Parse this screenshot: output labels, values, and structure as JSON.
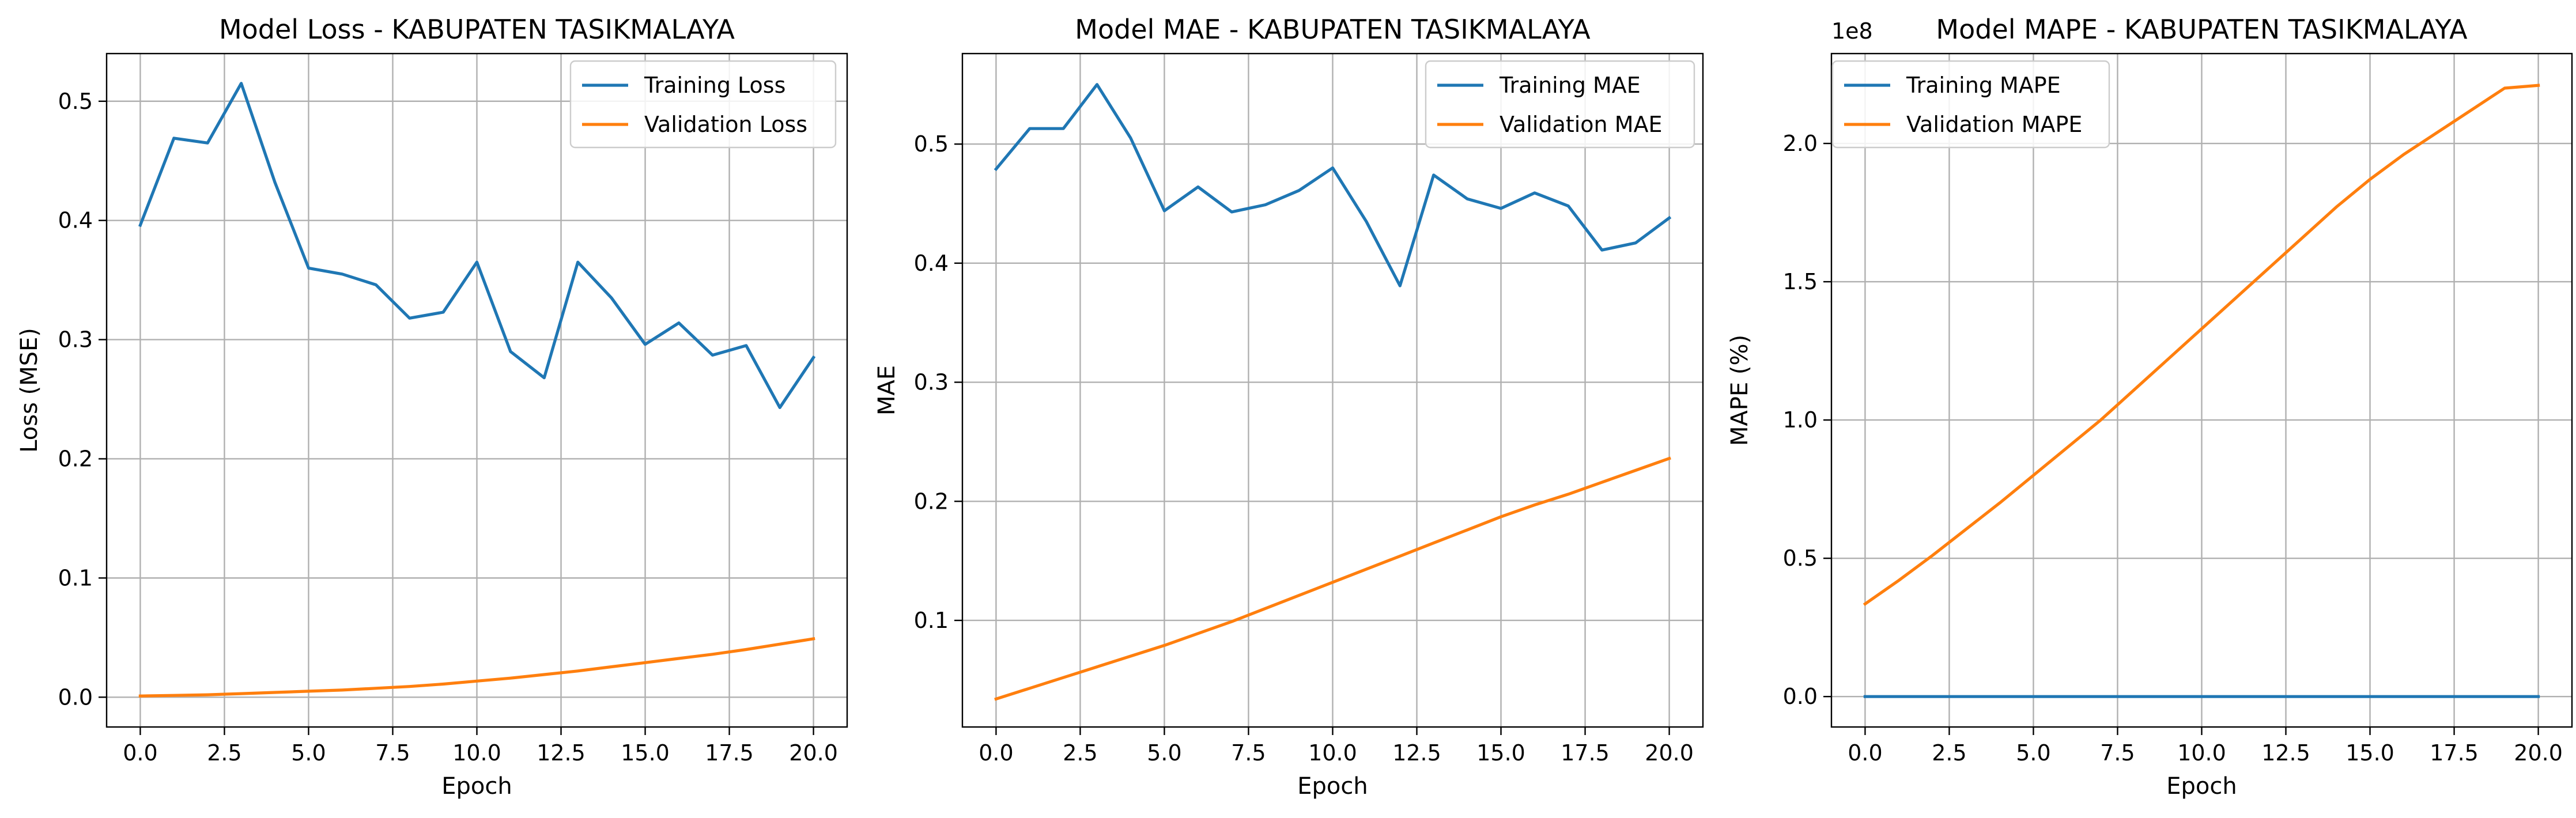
{
  "chart_data": [
    {
      "type": "line",
      "title": "Model Loss - KABUPATEN TASIKMALAYA",
      "xlabel": "Epoch",
      "ylabel": "Loss (MSE)",
      "xlim": [
        -1,
        21
      ],
      "ylim": [
        -0.025,
        0.54
      ],
      "xticks": [
        0,
        2.5,
        5,
        7.5,
        10,
        12.5,
        15,
        17.5,
        20
      ],
      "xtick_labels": [
        "0.0",
        "2.5",
        "5.0",
        "7.5",
        "10.0",
        "12.5",
        "15.0",
        "17.5",
        "20.0"
      ],
      "yticks": [
        0,
        0.1,
        0.2,
        0.3,
        0.4,
        0.5
      ],
      "ytick_labels": [
        "0.0",
        "0.1",
        "0.2",
        "0.3",
        "0.4",
        "0.5"
      ],
      "y_offset_label": "",
      "grid": true,
      "legend_position": "top-right",
      "x": [
        0,
        1,
        2,
        3,
        4,
        5,
        6,
        7,
        8,
        9,
        10,
        11,
        12,
        13,
        14,
        15,
        16,
        17,
        18,
        19,
        20
      ],
      "series": [
        {
          "name": "Training Loss",
          "color": "#1f77b4",
          "values": [
            0.396,
            0.469,
            0.465,
            0.515,
            0.432,
            0.36,
            0.355,
            0.346,
            0.318,
            0.323,
            0.365,
            0.29,
            0.268,
            0.365,
            0.335,
            0.296,
            0.314,
            0.287,
            0.295,
            0.243,
            0.285
          ]
        },
        {
          "name": "Validation Loss",
          "color": "#ff7f0e",
          "values": [
            0.001,
            0.0015,
            0.002,
            0.003,
            0.004,
            0.005,
            0.006,
            0.0075,
            0.009,
            0.011,
            0.0135,
            0.016,
            0.019,
            0.022,
            0.0255,
            0.029,
            0.0325,
            0.036,
            0.04,
            0.0445,
            0.049
          ]
        }
      ]
    },
    {
      "type": "line",
      "title": "Model MAE - KABUPATEN TASIKMALAYA",
      "xlabel": "Epoch",
      "ylabel": "MAE",
      "xlim": [
        -1,
        21
      ],
      "ylim": [
        0.0105,
        0.576
      ],
      "xticks": [
        0,
        2.5,
        5,
        7.5,
        10,
        12.5,
        15,
        17.5,
        20
      ],
      "xtick_labels": [
        "0.0",
        "2.5",
        "5.0",
        "7.5",
        "10.0",
        "12.5",
        "15.0",
        "17.5",
        "20.0"
      ],
      "yticks": [
        0.1,
        0.2,
        0.3,
        0.4,
        0.5
      ],
      "ytick_labels": [
        "0.1",
        "0.2",
        "0.3",
        "0.4",
        "0.5"
      ],
      "y_offset_label": "",
      "grid": true,
      "legend_position": "top-right",
      "x": [
        0,
        1,
        2,
        3,
        4,
        5,
        6,
        7,
        8,
        9,
        10,
        11,
        12,
        13,
        14,
        15,
        16,
        17,
        18,
        19,
        20
      ],
      "series": [
        {
          "name": "Training MAE",
          "color": "#1f77b4",
          "values": [
            0.479,
            0.513,
            0.513,
            0.55,
            0.505,
            0.444,
            0.464,
            0.443,
            0.449,
            0.461,
            0.48,
            0.435,
            0.381,
            0.474,
            0.454,
            0.446,
            0.459,
            0.448,
            0.411,
            0.417,
            0.438
          ]
        },
        {
          "name": "Validation MAE",
          "color": "#ff7f0e",
          "values": [
            0.034,
            0.043,
            0.052,
            0.061,
            0.07,
            0.079,
            0.089,
            0.099,
            0.11,
            0.121,
            0.132,
            0.143,
            0.154,
            0.165,
            0.176,
            0.187,
            0.197,
            0.206,
            0.216,
            0.226,
            0.236
          ]
        }
      ]
    },
    {
      "type": "line",
      "title": "Model MAPE - KABUPATEN TASIKMALAYA",
      "xlabel": "Epoch",
      "ylabel": "MAPE (%)",
      "xlim": [
        -1,
        21
      ],
      "ylim": [
        -0.11,
        2.325
      ],
      "xticks": [
        0,
        2.5,
        5,
        7.5,
        10,
        12.5,
        15,
        17.5,
        20
      ],
      "xtick_labels": [
        "0.0",
        "2.5",
        "5.0",
        "7.5",
        "10.0",
        "12.5",
        "15.0",
        "17.5",
        "20.0"
      ],
      "yticks": [
        0,
        0.5,
        1.0,
        1.5,
        2.0
      ],
      "ytick_labels": [
        "0.0",
        "0.5",
        "1.0",
        "1.5",
        "2.0"
      ],
      "y_offset_label": "1e8",
      "grid": true,
      "legend_position": "top-left",
      "x": [
        0,
        1,
        2,
        3,
        4,
        5,
        6,
        7,
        8,
        9,
        10,
        11,
        12,
        13,
        14,
        15,
        16,
        17,
        18,
        19,
        20
      ],
      "series": [
        {
          "name": "Training MAPE",
          "color": "#1f77b4",
          "values": [
            0,
            0,
            0,
            0,
            0,
            0,
            0,
            0,
            0,
            0,
            0,
            0,
            0,
            0,
            0,
            0,
            0,
            0,
            0,
            0,
            0
          ]
        },
        {
          "name": "Validation MAPE",
          "color": "#ff7f0e",
          "values": [
            0.335,
            0.42,
            0.51,
            0.605,
            0.7,
            0.8,
            0.9,
            1.0,
            1.11,
            1.22,
            1.33,
            1.44,
            1.55,
            1.66,
            1.77,
            1.87,
            1.96,
            2.04,
            2.12,
            2.2,
            2.21
          ]
        }
      ]
    }
  ]
}
